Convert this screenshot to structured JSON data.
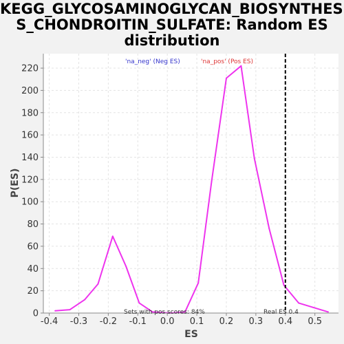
{
  "chart_data": {
    "type": "line",
    "title_lines": [
      "KEGG_GLYCOSAMINOGLYCAN_BIOSYNTHESI",
      "S_CHONDROITIN_SULFATE: Random ES",
      "distribution"
    ],
    "xlabel": "ES",
    "ylabel": "P(ES)",
    "xlim": [
      -0.42,
      0.58
    ],
    "ylim": [
      0,
      233
    ],
    "xticks": [
      -0.4,
      -0.3,
      -0.2,
      -0.1,
      0.0,
      0.1,
      0.2,
      0.3,
      0.4,
      0.5
    ],
    "xtick_labels": [
      "-0.4",
      "-0.3",
      "-0.2",
      "-0.1",
      "0.0",
      "0.1",
      "0.2",
      "0.3",
      "0.4",
      "0.5"
    ],
    "yticks": [
      0,
      20,
      40,
      60,
      80,
      100,
      120,
      140,
      160,
      180,
      200,
      220
    ],
    "grid": true,
    "series": [
      {
        "color": "#ee33ee",
        "x": [
          -0.38,
          -0.33,
          -0.28,
          -0.235,
          -0.185,
          -0.14,
          -0.095,
          -0.05,
          0.01,
          0.06,
          0.105,
          0.15,
          0.2,
          0.25,
          0.295,
          0.345,
          0.395,
          0.445,
          0.495,
          0.545
        ],
        "y": [
          2,
          3,
          12,
          26,
          69,
          42,
          9,
          1,
          0,
          1,
          27,
          118,
          211,
          222,
          139,
          76,
          25,
          9,
          5,
          1
        ]
      }
    ],
    "legend": [
      {
        "label": "'na_neg' (Neg ES)",
        "color": "#3333cc"
      },
      {
        "label": "'na_pos' (Pos ES)",
        "color": "#dd3333"
      }
    ],
    "real_es": {
      "value": 0.4,
      "label": "Real ES 0.4"
    },
    "footnote": "Sets with pos scores: 84%"
  }
}
